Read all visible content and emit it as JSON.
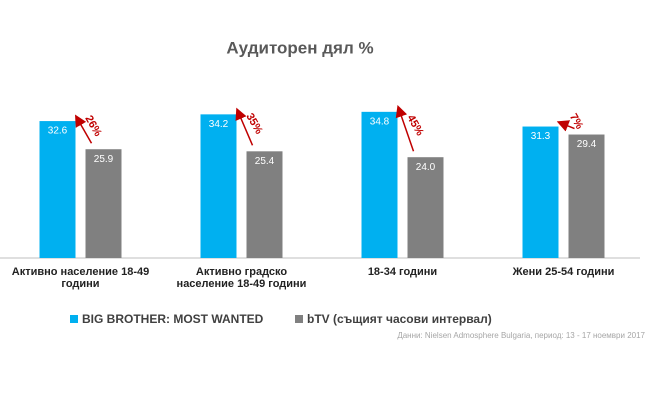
{
  "chart_data": {
    "type": "bar",
    "title": "Аудиторен дял %",
    "categories": [
      "Активно население 18-49 години",
      "Активно градско население 18-49 години",
      "18-34 години",
      "Жени 25-54 години"
    ],
    "series": [
      {
        "name": "BIG BROTHER: MOST WANTED",
        "color": "#00b0f0",
        "values": [
          32.6,
          34.2,
          34.8,
          31.3
        ],
        "value_labels": [
          "32.6",
          "34.2",
          "34.8",
          "31.3"
        ]
      },
      {
        "name": "bTV (същият часови интервал)",
        "color": "#808080",
        "values": [
          25.9,
          25.4,
          24.0,
          29.4
        ],
        "value_labels": [
          "25.9",
          "25.4",
          "24.0",
          "29.4"
        ]
      }
    ],
    "annotations": [
      "26%",
      "35%",
      "45%",
      "7%"
    ],
    "annotation_color": "#c00000",
    "source": "Данни: Nielsen Admosphere Bulgaria, период: 13 - 17 ноември 2017"
  }
}
